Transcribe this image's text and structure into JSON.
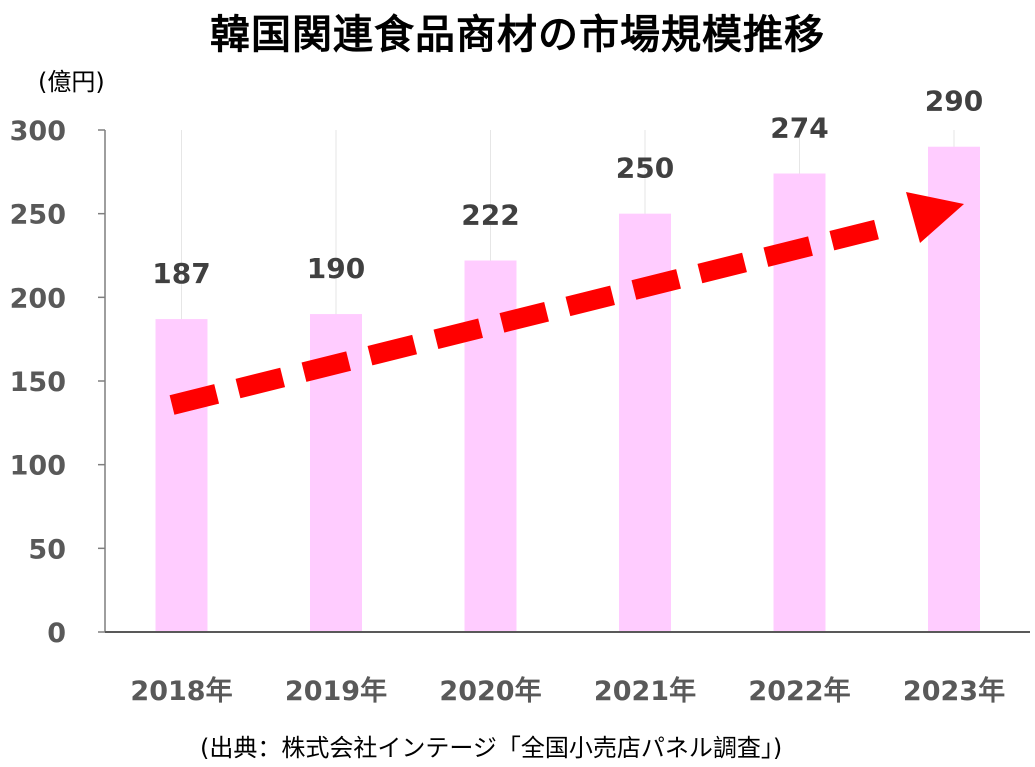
{
  "chart_data": {
    "type": "bar",
    "title": "韓国関連食品商材の市場規模推移",
    "unit_label": "(億円)",
    "categories": [
      "2018年",
      "2019年",
      "2020年",
      "2021年",
      "2022年",
      "2023年"
    ],
    "values": [
      187,
      190,
      222,
      250,
      274,
      290
    ],
    "data_labels": [
      "187",
      "190",
      "222",
      "250",
      "274",
      "290"
    ],
    "yticks": [
      "0",
      "50",
      "100",
      "150",
      "200",
      "250",
      "300"
    ],
    "ylim": [
      0,
      300
    ],
    "grid": "vertical",
    "bar_color": "#ffccff",
    "annotation": {
      "type": "trend-arrow",
      "style": "dashed",
      "color": "#ff0000"
    },
    "source": "(出典：株式会社インテージ「全国小売店パネル調査」)"
  }
}
